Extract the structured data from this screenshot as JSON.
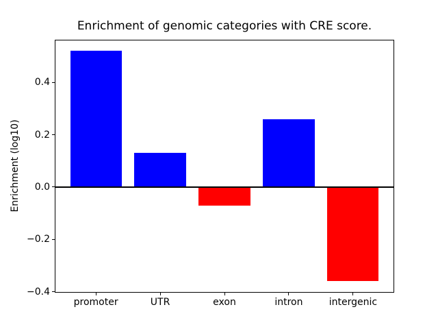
{
  "figure": {
    "background": "#ffffff",
    "axis_color": "#000000"
  },
  "chart_data": {
    "type": "bar",
    "title": "Enrichment of genomic categories with CRE score.",
    "xlabel": "",
    "ylabel": "Enrichment (log10)",
    "categories": [
      "promoter",
      "UTR",
      "exon",
      "intron",
      "intergenic"
    ],
    "values": [
      0.52,
      0.13,
      -0.07,
      0.26,
      -0.36
    ],
    "bar_colors": [
      "#0000ff",
      "#0000ff",
      "#ff0000",
      "#0000ff",
      "#ff0000"
    ],
    "positive_color": "#0000ff",
    "negative_color": "#ff0000",
    "ylim": [
      -0.404,
      0.564
    ],
    "yticks": [
      -0.4,
      -0.2,
      0.0,
      0.2,
      0.4
    ],
    "ytick_labels": [
      "−0.4",
      "−0.2",
      "0.0",
      "0.2",
      "0.4"
    ],
    "zero_line": true,
    "grid": false,
    "legend": null
  }
}
